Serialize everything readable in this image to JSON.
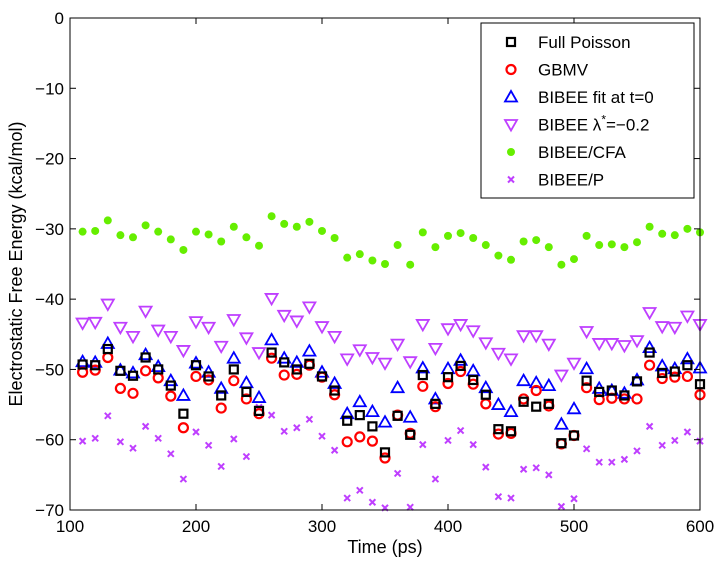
{
  "chart_data": {
    "type": "scatter",
    "title": "",
    "xlabel": "Time (ps)",
    "ylabel": "Electrostatic Free Energy (kcal/mol)",
    "xlim": [
      100,
      600
    ],
    "ylim": [
      -70,
      0
    ],
    "xticks": [
      100,
      200,
      300,
      400,
      500,
      600
    ],
    "yticks": [
      0,
      -10,
      -20,
      -30,
      -40,
      -50,
      -60,
      -70
    ],
    "grid": false,
    "legend_position": "top-right",
    "x": [
      110,
      120,
      130,
      140,
      150,
      160,
      170,
      180,
      190,
      200,
      210,
      220,
      230,
      240,
      250,
      260,
      270,
      280,
      290,
      300,
      310,
      320,
      330,
      340,
      350,
      360,
      370,
      380,
      390,
      400,
      410,
      420,
      430,
      440,
      450,
      460,
      470,
      480,
      490,
      500,
      510,
      520,
      530,
      540,
      550,
      560,
      570,
      580,
      590,
      600
    ],
    "series": [
      {
        "name": "Full Poisson",
        "marker": "square",
        "color": "#000000",
        "values": [
          -49.3,
          -49.4,
          -47.1,
          -50.2,
          -50.9,
          -48.3,
          -50.0,
          -52.3,
          -56.3,
          -49.4,
          -51.0,
          -53.7,
          -50.0,
          -53.2,
          -55.9,
          -47.6,
          -49.0,
          -50.0,
          -49.2,
          -51.0,
          -53.0,
          -57.3,
          -56.5,
          -58.1,
          -61.8,
          -56.6,
          -59.3,
          -50.8,
          -54.9,
          -51.1,
          -49.5,
          -51.5,
          -53.6,
          -58.5,
          -58.8,
          -54.6,
          -55.3,
          -54.9,
          -60.5,
          -59.4,
          -51.6,
          -53.2,
          -53.0,
          -53.7,
          -51.7,
          -47.6,
          -50.5,
          -50.3,
          -49.4,
          -52.1
        ]
      },
      {
        "name": "GBMV",
        "marker": "circle",
        "color": "#ff0000",
        "values": [
          -50.4,
          -50.1,
          -48.3,
          -52.7,
          -53.4,
          -50.2,
          -51.2,
          -53.8,
          -58.3,
          -51.0,
          -51.5,
          -55.5,
          -51.6,
          -54.2,
          -56.3,
          -48.4,
          -50.8,
          -50.7,
          -49.4,
          -51.1,
          -53.6,
          -60.3,
          -59.6,
          -60.2,
          -62.6,
          -56.5,
          -59.1,
          -52.4,
          -55.3,
          -52.0,
          -50.3,
          -52.1,
          -54.9,
          -59.2,
          -59.1,
          -54.2,
          -53.0,
          -55.2,
          -60.6,
          -59.4,
          -52.6,
          -54.3,
          -54.1,
          -54.2,
          -54.2,
          -49.4,
          -51.3,
          -51.1,
          -51.0,
          -53.6
        ]
      },
      {
        "name": "BIBEE fit at t=0",
        "marker": "triangle-up",
        "color": "#0000ff",
        "values": [
          -48.9,
          -49.0,
          -46.3,
          -50.1,
          -50.5,
          -47.9,
          -49.6,
          -51.6,
          -53.7,
          -49.1,
          -50.4,
          -52.7,
          -48.4,
          -51.9,
          -54.0,
          -45.8,
          -48.4,
          -49.0,
          -47.4,
          -50.4,
          -52.0,
          -56.3,
          -54.6,
          -56.0,
          -57.5,
          -52.6,
          -56.8,
          -49.8,
          -54.2,
          -49.9,
          -48.7,
          -50.2,
          -52.6,
          -55.0,
          -56.0,
          -51.6,
          -51.9,
          -52.3,
          -57.8,
          -55.6,
          -49.9,
          -52.7,
          -53.0,
          -53.4,
          -51.5,
          -46.9,
          -49.5,
          -49.9,
          -48.5,
          -49.8
        ]
      },
      {
        "name": "BIBEE λ*=−0.2",
        "marker": "triangle-down",
        "color": "#bf3fff",
        "values": [
          -43.4,
          -43.3,
          -40.7,
          -44.0,
          -45.3,
          -41.7,
          -44.4,
          -45.3,
          -47.3,
          -43.2,
          -44.0,
          -46.7,
          -42.9,
          -45.5,
          -47.6,
          -39.9,
          -42.3,
          -43.1,
          -41.1,
          -43.9,
          -45.3,
          -48.5,
          -47.2,
          -48.3,
          -49.1,
          -46.4,
          -48.9,
          -43.6,
          -47.0,
          -44.2,
          -43.6,
          -44.5,
          -46.2,
          -47.7,
          -48.5,
          -45.2,
          -45.2,
          -46.4,
          -50.8,
          -49.1,
          -44.6,
          -46.3,
          -46.3,
          -46.6,
          -45.9,
          -41.9,
          -43.9,
          -44.0,
          -42.4,
          -43.6
        ]
      },
      {
        "name": "BIBEE/CFA",
        "marker": "dot",
        "color": "#66ee00",
        "values": [
          -30.4,
          -30.3,
          -28.8,
          -30.9,
          -31.2,
          -29.5,
          -30.4,
          -31.5,
          -33.0,
          -30.4,
          -30.8,
          -31.8,
          -29.7,
          -31.2,
          -32.4,
          -28.2,
          -29.3,
          -29.7,
          -29.0,
          -30.3,
          -31.3,
          -34.1,
          -33.6,
          -34.5,
          -35.0,
          -32.3,
          -35.1,
          -30.5,
          -32.6,
          -31.0,
          -30.6,
          -31.3,
          -32.3,
          -33.8,
          -34.4,
          -31.8,
          -31.6,
          -32.6,
          -35.1,
          -34.3,
          -31.0,
          -32.3,
          -32.2,
          -32.6,
          -31.9,
          -29.7,
          -30.7,
          -30.9,
          -30.0,
          -30.5
        ]
      },
      {
        "name": "BIBEE/P",
        "marker": "x",
        "color": "#bf3fff",
        "values": [
          -60.2,
          -59.8,
          -56.6,
          -60.3,
          -61.2,
          -58.1,
          -59.8,
          -62.0,
          -65.6,
          -58.9,
          -60.8,
          -63.8,
          -59.9,
          -62.4,
          -55.4,
          -56.5,
          -58.8,
          -58.3,
          -57.1,
          -59.5,
          -61.5,
          -68.3,
          -67.2,
          -68.9,
          -69.7,
          -64.8,
          -69.6,
          -60.7,
          -65.6,
          -60.1,
          -58.7,
          -60.7,
          -63.9,
          -68.1,
          -68.3,
          -64.2,
          -64.0,
          -65.0,
          -69.5,
          -68.4,
          -61.3,
          -63.2,
          -63.2,
          -62.8,
          -61.6,
          -58.1,
          -60.8,
          -60.1,
          -58.9,
          -60.2
        ]
      }
    ]
  }
}
